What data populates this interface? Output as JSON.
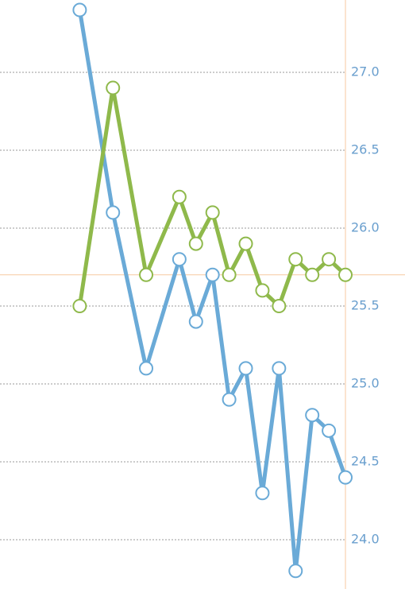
{
  "chart_data": {
    "type": "line",
    "x": [
      0,
      2,
      4,
      6,
      7,
      8,
      9,
      10,
      11,
      12,
      13,
      14,
      15,
      16
    ],
    "series": [
      {
        "color": "#6aaad7",
        "values": [
          27.4,
          26.1,
          25.1,
          25.8,
          25.4,
          25.7,
          24.9,
          25.1,
          24.3,
          25.1,
          23.8,
          24.8,
          24.7,
          24.4
        ]
      },
      {
        "color": "#8fb94b",
        "values": [
          25.5,
          26.9,
          25.7,
          26.2,
          25.9,
          26.1,
          25.7,
          25.9,
          25.6,
          25.5,
          25.8,
          25.7,
          25.8,
          25.7
        ]
      }
    ],
    "xlim": [
      -4.8,
      16
    ],
    "ylim": [
      23.684,
      27.464
    ],
    "yticks": [
      {
        "value": 24,
        "label": "24.0"
      },
      {
        "value": 24.5,
        "label": "24.5"
      },
      {
        "value": 25,
        "label": "25.0"
      },
      {
        "value": 25.5,
        "label": "25.5"
      },
      {
        "value": 26,
        "label": "26.0"
      },
      {
        "value": 26.5,
        "label": "26.5"
      },
      {
        "value": 27,
        "label": "27.0"
      }
    ],
    "grid": true,
    "reference_line": 25.7,
    "reference_color": "#f7c9a0"
  }
}
